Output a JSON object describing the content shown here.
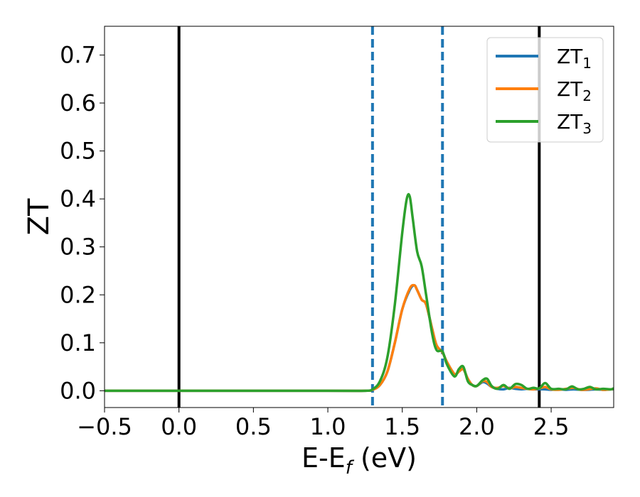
{
  "chart_data": {
    "type": "line",
    "xlabel_main": "E-E",
    "xlabel_sub": "f",
    "xlabel_unit": " (eV)",
    "ylabel": "ZT",
    "xlim": [
      -0.5,
      2.92
    ],
    "ylim": [
      -0.035,
      0.76
    ],
    "xticks": [
      -0.5,
      0.0,
      0.5,
      1.0,
      1.5,
      2.0,
      2.5
    ],
    "xtick_labels": [
      "−0.5",
      "0.0",
      "0.5",
      "1.0",
      "1.5",
      "2.0",
      "2.5"
    ],
    "yticks": [
      0.0,
      0.1,
      0.2,
      0.3,
      0.4,
      0.5,
      0.6,
      0.7
    ],
    "ytick_labels": [
      "0.0",
      "0.1",
      "0.2",
      "0.3",
      "0.4",
      "0.5",
      "0.6",
      "0.7"
    ],
    "grid": false,
    "legend_placement": "top-right",
    "vlines": [
      {
        "x": 0.0,
        "style": "solid",
        "color": "#000000"
      },
      {
        "x": 2.42,
        "style": "solid",
        "color": "#000000"
      },
      {
        "x": 1.3,
        "style": "dashed",
        "color": "#1f77b4"
      },
      {
        "x": 1.77,
        "style": "dashed",
        "color": "#1f77b4"
      }
    ],
    "series": [
      {
        "name": "ZT",
        "sub": "1",
        "color": "#1f77b4",
        "x": [
          -0.5,
          1.0,
          1.25,
          1.3,
          1.35,
          1.4,
          1.45,
          1.5,
          1.55,
          1.58,
          1.6,
          1.63,
          1.66,
          1.7,
          1.73,
          1.77,
          1.8,
          1.85,
          1.88,
          1.91,
          1.94,
          1.97,
          2.0,
          2.04,
          2.07,
          2.1,
          2.14,
          2.18,
          2.22,
          2.26,
          2.3,
          2.34,
          2.38,
          2.42,
          2.46,
          2.5,
          2.55,
          2.6,
          2.65,
          2.7,
          2.75,
          2.8,
          2.85,
          2.9,
          2.92
        ],
        "y": [
          0.0,
          0.0,
          0.0,
          0.002,
          0.012,
          0.04,
          0.1,
          0.17,
          0.21,
          0.22,
          0.21,
          0.19,
          0.18,
          0.13,
          0.095,
          0.08,
          0.06,
          0.035,
          0.04,
          0.045,
          0.025,
          0.012,
          0.01,
          0.018,
          0.015,
          0.008,
          0.004,
          0.003,
          0.006,
          0.004,
          0.003,
          0.004,
          0.003,
          0.003,
          0.003,
          0.002,
          0.003,
          0.002,
          0.003,
          0.002,
          0.002,
          0.003,
          0.002,
          0.003,
          0.003
        ]
      },
      {
        "name": "ZT",
        "sub": "2",
        "color": "#ff7f0e",
        "x": [
          -0.5,
          1.0,
          1.25,
          1.3,
          1.35,
          1.4,
          1.45,
          1.5,
          1.55,
          1.58,
          1.6,
          1.63,
          1.66,
          1.7,
          1.73,
          1.77,
          1.8,
          1.85,
          1.88,
          1.91,
          1.94,
          1.97,
          2.0,
          2.04,
          2.07,
          2.1,
          2.14,
          2.18,
          2.22,
          2.26,
          2.3,
          2.34,
          2.38,
          2.42,
          2.46,
          2.5,
          2.55,
          2.6,
          2.65,
          2.7,
          2.75,
          2.8,
          2.85,
          2.9,
          2.92
        ],
        "y": [
          0.0,
          0.0,
          0.0,
          0.002,
          0.012,
          0.04,
          0.1,
          0.17,
          0.213,
          0.22,
          0.21,
          0.19,
          0.18,
          0.13,
          0.095,
          0.08,
          0.06,
          0.035,
          0.04,
          0.045,
          0.025,
          0.012,
          0.01,
          0.02,
          0.018,
          0.008,
          0.006,
          0.01,
          0.005,
          0.008,
          0.006,
          0.004,
          0.003,
          0.005,
          0.008,
          0.003,
          0.002,
          0.004,
          0.006,
          0.002,
          0.003,
          0.005,
          0.002,
          0.003,
          0.004
        ]
      },
      {
        "name": "ZT",
        "sub": "3",
        "color": "#2ca02c",
        "x": [
          -0.5,
          1.0,
          1.25,
          1.3,
          1.35,
          1.4,
          1.45,
          1.5,
          1.53,
          1.55,
          1.57,
          1.6,
          1.63,
          1.66,
          1.7,
          1.73,
          1.77,
          1.8,
          1.85,
          1.88,
          1.91,
          1.94,
          1.97,
          2.0,
          2.04,
          2.07,
          2.1,
          2.14,
          2.18,
          2.22,
          2.26,
          2.3,
          2.34,
          2.38,
          2.42,
          2.46,
          2.5,
          2.55,
          2.6,
          2.64,
          2.68,
          2.72,
          2.76,
          2.8,
          2.85,
          2.9,
          2.92
        ],
        "y": [
          0.0,
          0.0,
          0.0,
          0.003,
          0.02,
          0.07,
          0.18,
          0.33,
          0.4,
          0.405,
          0.36,
          0.29,
          0.26,
          0.2,
          0.12,
          0.085,
          0.082,
          0.055,
          0.03,
          0.045,
          0.05,
          0.02,
          0.012,
          0.01,
          0.022,
          0.025,
          0.01,
          0.004,
          0.012,
          0.004,
          0.014,
          0.012,
          0.004,
          0.006,
          0.005,
          0.016,
          0.004,
          0.004,
          0.003,
          0.009,
          0.003,
          0.004,
          0.008,
          0.003,
          0.004,
          0.003,
          0.005
        ]
      }
    ]
  }
}
